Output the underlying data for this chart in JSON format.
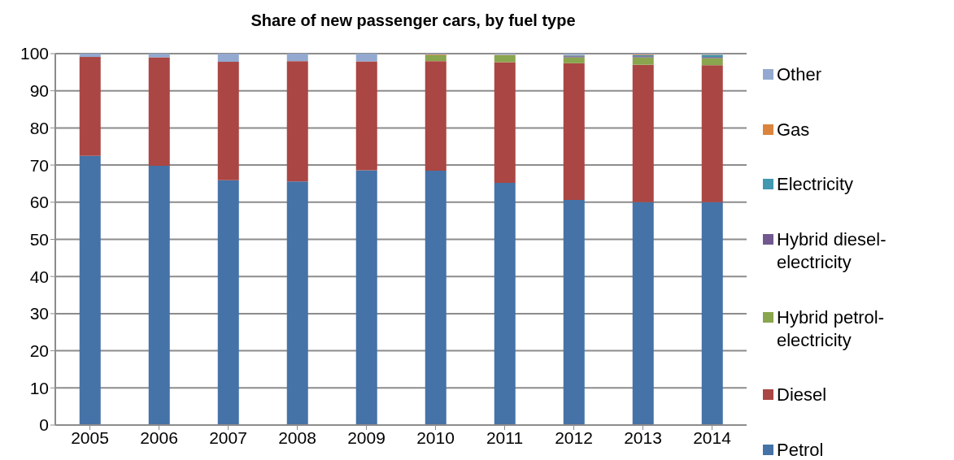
{
  "chart_data": {
    "type": "bar",
    "title": "Share of new passenger cars, by fuel type",
    "categories": [
      "2005",
      "2006",
      "2007",
      "2008",
      "2009",
      "2010",
      "2011",
      "2012",
      "2013",
      "2014"
    ],
    "stacked": true,
    "series": [
      {
        "name": "Petrol",
        "color": "#4572a7",
        "values": [
          72.5,
          69.8,
          65.9,
          65.6,
          68.6,
          68.5,
          65.2,
          60.6,
          60.0,
          60.0
        ]
      },
      {
        "name": "Diesel",
        "color": "#aa4643",
        "values": [
          26.6,
          29.2,
          31.9,
          32.4,
          29.3,
          29.5,
          32.5,
          36.8,
          37.0,
          36.9
        ]
      },
      {
        "name": "Hybrid petrol-electricity",
        "color": "#89a54e",
        "values": [
          0,
          0,
          0,
          0,
          0,
          1.6,
          1.9,
          1.6,
          2.0,
          1.9
        ]
      },
      {
        "name": "Hybrid diesel-electricity",
        "color": "#71588f",
        "values": [
          0,
          0,
          0,
          0,
          0,
          0,
          0,
          0.3,
          0.3,
          0.3
        ]
      },
      {
        "name": "Electricity",
        "color": "#4198af",
        "values": [
          0,
          0,
          0,
          0,
          0,
          0,
          0,
          0.2,
          0.3,
          0.6
        ]
      },
      {
        "name": "Gas",
        "color": "#db843d",
        "values": [
          0,
          0,
          0,
          0,
          0,
          0.2,
          0.1,
          0.1,
          0.2,
          0.1
        ]
      },
      {
        "name": "Other",
        "color": "#93a9cf",
        "values": [
          0.9,
          1.0,
          2.2,
          2.0,
          2.1,
          0.2,
          0.3,
          0.4,
          0.2,
          0.2
        ]
      }
    ],
    "ylim": [
      0,
      100
    ],
    "yticks": [
      0,
      10,
      20,
      30,
      40,
      50,
      60,
      70,
      80,
      90,
      100
    ],
    "grid": "y",
    "legend": "right"
  }
}
